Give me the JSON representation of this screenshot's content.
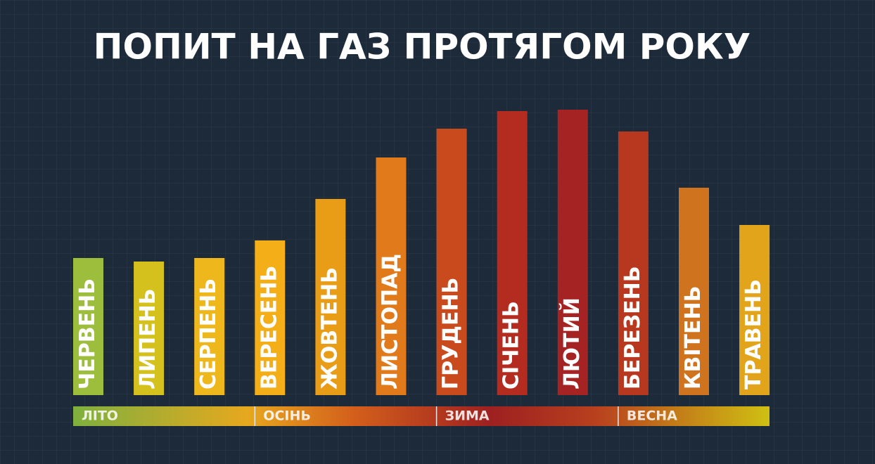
{
  "chart_data": {
    "type": "bar",
    "title": "ПОПИТ НА ГАЗ ПРОТЯГОМ РОКУ",
    "categories": [
      "ЧЕРВЕНЬ",
      "ЛИПЕНЬ",
      "СЕРПЕНЬ",
      "ВЕРЕСЕНЬ",
      "ЖОВТЕНЬ",
      "ЛИСТОПАД",
      "ГРУДЕНЬ",
      "СІЧЕНЬ",
      "ЛЮТИЙ",
      "БЕРЕЗЕНЬ",
      "КВІТЕНЬ",
      "ТРАВЕНЬ"
    ],
    "values": [
      195,
      190,
      195,
      220,
      279,
      338,
      379,
      404,
      406,
      375,
      295,
      242
    ],
    "colors": [
      "#9dbd3c",
      "#d4c11e",
      "#eeb71c",
      "#f3ae18",
      "#e99c16",
      "#e07a1a",
      "#c94a1d",
      "#b42b20",
      "#a52322",
      "#b7381e",
      "#cf731f",
      "#e2a41a"
    ],
    "seasons": [
      "ЛІТО",
      "ОСІНЬ",
      "ЗИМА",
      "ВЕСНА"
    ]
  }
}
